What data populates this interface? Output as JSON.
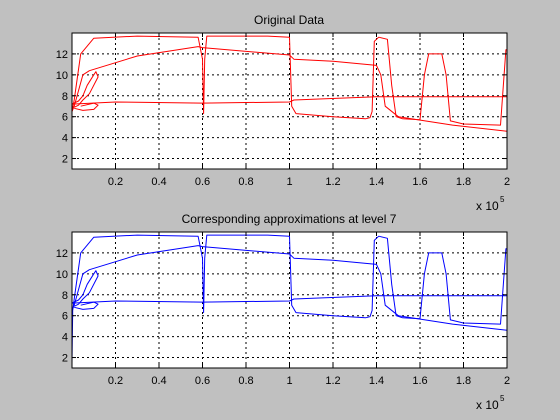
{
  "chart_data": [
    {
      "type": "line",
      "title": "Original Data",
      "xlabel": "",
      "ylabel": "",
      "xlim": [
        0,
        200000
      ],
      "ylim": [
        1,
        14
      ],
      "x_ticks": [
        20000,
        40000,
        60000,
        80000,
        100000,
        120000,
        140000,
        160000,
        180000,
        200000
      ],
      "x_tick_labels": [
        "0.2",
        "0.4",
        "0.6",
        "0.8",
        "1",
        "1.2",
        "1.4",
        "1.6",
        "1.8",
        "2"
      ],
      "y_ticks": [
        2,
        4,
        6,
        8,
        10,
        12
      ],
      "y_tick_labels": [
        "2",
        "4",
        "6",
        "8",
        "10",
        "12"
      ],
      "x_multiplier": "x 10",
      "x_multiplier_exponent": "5",
      "grid": true,
      "color": "#ff0000",
      "series": [
        {
          "values": [
            [
              0,
              6.5
            ],
            [
              1000,
              7.6
            ],
            [
              4000,
              12.0
            ],
            [
              10000,
              13.5
            ],
            [
              30000,
              13.7
            ],
            [
              58000,
              13.6
            ],
            [
              60000,
              11.5
            ],
            [
              60500,
              6.3
            ],
            [
              61000,
              11.5
            ],
            [
              62000,
              13.7
            ],
            [
              90000,
              13.7
            ],
            [
              100000,
              13.6
            ],
            [
              101000,
              7.0
            ],
            [
              103000,
              6.3
            ],
            [
              120000,
              6.0
            ],
            [
              135000,
              5.8
            ],
            [
              137000,
              5.9
            ],
            [
              138000,
              6.5
            ],
            [
              139000,
              13.2
            ],
            [
              141000,
              13.6
            ],
            [
              145000,
              13.4
            ],
            [
              147000,
              9.0
            ],
            [
              149000,
              6.0
            ],
            [
              152000,
              5.8
            ],
            [
              160000,
              5.7
            ],
            [
              162000,
              10.0
            ],
            [
              164000,
              12.0
            ],
            [
              170000,
              12.0
            ],
            [
              172000,
              10.0
            ],
            [
              174000,
              5.6
            ],
            [
              180000,
              5.3
            ],
            [
              197000,
              5.2
            ],
            [
              198000,
              8.0
            ],
            [
              199500,
              12.4
            ],
            [
              200000,
              12.4
            ]
          ]
        },
        {
          "values": [
            [
              0,
              6.5
            ],
            [
              1000,
              7.0
            ],
            [
              5000,
              10.0
            ],
            [
              8000,
              10.4
            ],
            [
              30000,
              11.8
            ],
            [
              58000,
              12.7
            ],
            [
              60000,
              12.6
            ],
            [
              100000,
              11.9
            ],
            [
              102000,
              11.5
            ],
            [
              120000,
              11.3
            ],
            [
              140000,
              10.9
            ],
            [
              142000,
              10.0
            ],
            [
              144000,
              7.0
            ],
            [
              150000,
              6.0
            ],
            [
              175000,
              5.2
            ],
            [
              200000,
              4.6
            ]
          ]
        },
        {
          "values": [
            [
              0,
              7.2
            ],
            [
              20000,
              7.4
            ],
            [
              60000,
              7.3
            ],
            [
              100000,
              7.4
            ],
            [
              102000,
              7.6
            ],
            [
              140000,
              7.9
            ],
            [
              170000,
              7.9
            ],
            [
              200000,
              7.9
            ]
          ]
        },
        {
          "values": [
            [
              0,
              7.2
            ],
            [
              3000,
              7.5
            ],
            [
              5000,
              8.0
            ],
            [
              7000,
              9.0
            ],
            [
              10000,
              10.0
            ],
            [
              11000,
              10.3
            ],
            [
              12000,
              9.8
            ],
            [
              8000,
              8.2
            ],
            [
              5000,
              7.6
            ],
            [
              3000,
              7.1
            ],
            [
              1000,
              6.9
            ]
          ]
        },
        {
          "values": [
            [
              1000,
              6.8
            ],
            [
              5000,
              6.6
            ],
            [
              10000,
              6.7
            ],
            [
              12000,
              7.1
            ],
            [
              10000,
              7.3
            ],
            [
              4000,
              7.0
            ]
          ]
        }
      ]
    },
    {
      "type": "line",
      "title": "Corresponding approximations at level 7",
      "xlabel": "",
      "ylabel": "",
      "xlim": [
        0,
        200000
      ],
      "ylim": [
        1,
        14
      ],
      "x_ticks": [
        20000,
        40000,
        60000,
        80000,
        100000,
        120000,
        140000,
        160000,
        180000,
        200000
      ],
      "x_tick_labels": [
        "0.2",
        "0.4",
        "0.6",
        "0.8",
        "1",
        "1.2",
        "1.4",
        "1.6",
        "1.8",
        "2"
      ],
      "y_ticks": [
        2,
        4,
        6,
        8,
        10,
        12
      ],
      "y_tick_labels": [
        "2",
        "4",
        "6",
        "8",
        "10",
        "12"
      ],
      "x_multiplier": "x 10",
      "x_multiplier_exponent": "5",
      "grid": true,
      "color": "#0000ff",
      "series": [
        {
          "values": [
            [
              0,
              1.5
            ],
            [
              300,
              6.5
            ],
            [
              1000,
              7.6
            ],
            [
              4000,
              12.0
            ],
            [
              10000,
              13.5
            ],
            [
              30000,
              13.7
            ],
            [
              58000,
              13.6
            ],
            [
              60000,
              11.5
            ],
            [
              60500,
              6.3
            ],
            [
              61000,
              11.5
            ],
            [
              62000,
              13.7
            ],
            [
              90000,
              13.7
            ],
            [
              100000,
              13.6
            ],
            [
              101000,
              7.0
            ],
            [
              103000,
              6.3
            ],
            [
              120000,
              6.0
            ],
            [
              135000,
              5.8
            ],
            [
              137000,
              5.9
            ],
            [
              138000,
              6.5
            ],
            [
              139000,
              13.2
            ],
            [
              141000,
              13.6
            ],
            [
              145000,
              13.4
            ],
            [
              147000,
              9.0
            ],
            [
              149000,
              6.0
            ],
            [
              152000,
              5.8
            ],
            [
              160000,
              5.7
            ],
            [
              162000,
              10.0
            ],
            [
              164000,
              12.0
            ],
            [
              170000,
              12.0
            ],
            [
              172000,
              10.0
            ],
            [
              174000,
              5.6
            ],
            [
              180000,
              5.3
            ],
            [
              197000,
              5.2
            ],
            [
              198000,
              8.0
            ],
            [
              199500,
              12.4
            ],
            [
              200000,
              12.4
            ]
          ]
        },
        {
          "values": [
            [
              0,
              6.5
            ],
            [
              1000,
              7.0
            ],
            [
              5000,
              10.0
            ],
            [
              8000,
              10.4
            ],
            [
              30000,
              11.8
            ],
            [
              58000,
              12.7
            ],
            [
              60000,
              12.6
            ],
            [
              100000,
              11.9
            ],
            [
              102000,
              11.5
            ],
            [
              120000,
              11.3
            ],
            [
              140000,
              10.9
            ],
            [
              142000,
              10.0
            ],
            [
              144000,
              7.0
            ],
            [
              150000,
              6.0
            ],
            [
              175000,
              5.2
            ],
            [
              200000,
              4.6
            ]
          ]
        },
        {
          "values": [
            [
              0,
              7.2
            ],
            [
              20000,
              7.4
            ],
            [
              60000,
              7.3
            ],
            [
              100000,
              7.4
            ],
            [
              102000,
              7.6
            ],
            [
              140000,
              7.9
            ],
            [
              170000,
              7.9
            ],
            [
              200000,
              7.9
            ]
          ]
        },
        {
          "values": [
            [
              0,
              7.2
            ],
            [
              3000,
              7.5
            ],
            [
              5000,
              8.0
            ],
            [
              7000,
              9.0
            ],
            [
              10000,
              10.0
            ],
            [
              11000,
              10.3
            ],
            [
              12000,
              9.8
            ],
            [
              8000,
              8.2
            ],
            [
              5000,
              7.6
            ],
            [
              3000,
              7.1
            ],
            [
              1000,
              6.9
            ]
          ]
        },
        {
          "values": [
            [
              1000,
              6.8
            ],
            [
              5000,
              6.6
            ],
            [
              10000,
              6.7
            ],
            [
              12000,
              7.1
            ],
            [
              10000,
              7.3
            ],
            [
              4000,
              7.0
            ]
          ]
        }
      ]
    }
  ]
}
